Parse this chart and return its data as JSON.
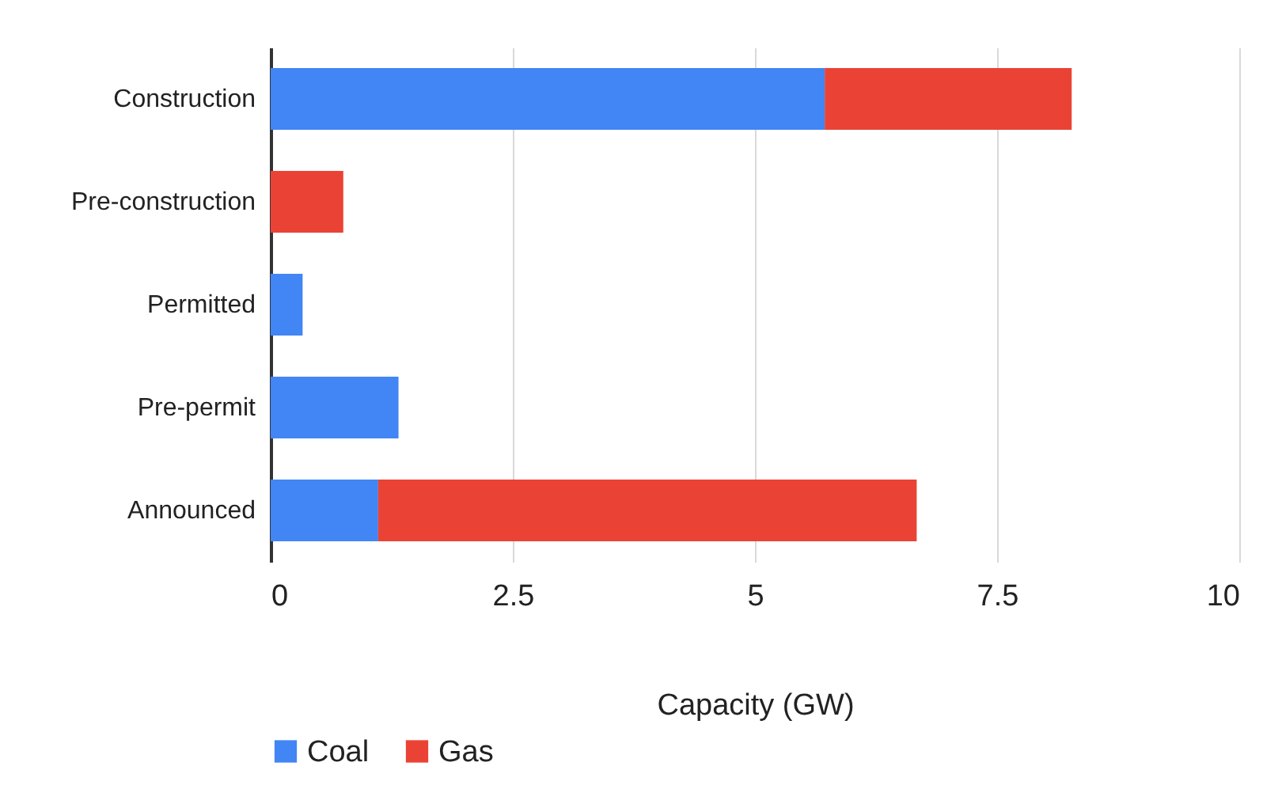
{
  "chart_data": {
    "type": "bar",
    "orientation": "horizontal",
    "stacked": true,
    "xlabel": "Capacity (GW)",
    "categories": [
      "Construction",
      "Pre-construction",
      "Permitted",
      "Pre-permit",
      "Announced"
    ],
    "series": [
      {
        "name": "Coal",
        "color": "#4285f4",
        "values": [
          5.72,
          null,
          0.33,
          1.32,
          1.11
        ]
      },
      {
        "name": "Gas",
        "color": "#ea4335",
        "values": [
          2.55,
          0.75,
          null,
          null,
          5.56
        ]
      }
    ],
    "xlim": [
      0,
      10
    ],
    "xticks": [
      0,
      2.5,
      5,
      7.5,
      10
    ],
    "grid": "x",
    "legend": "bottom"
  }
}
